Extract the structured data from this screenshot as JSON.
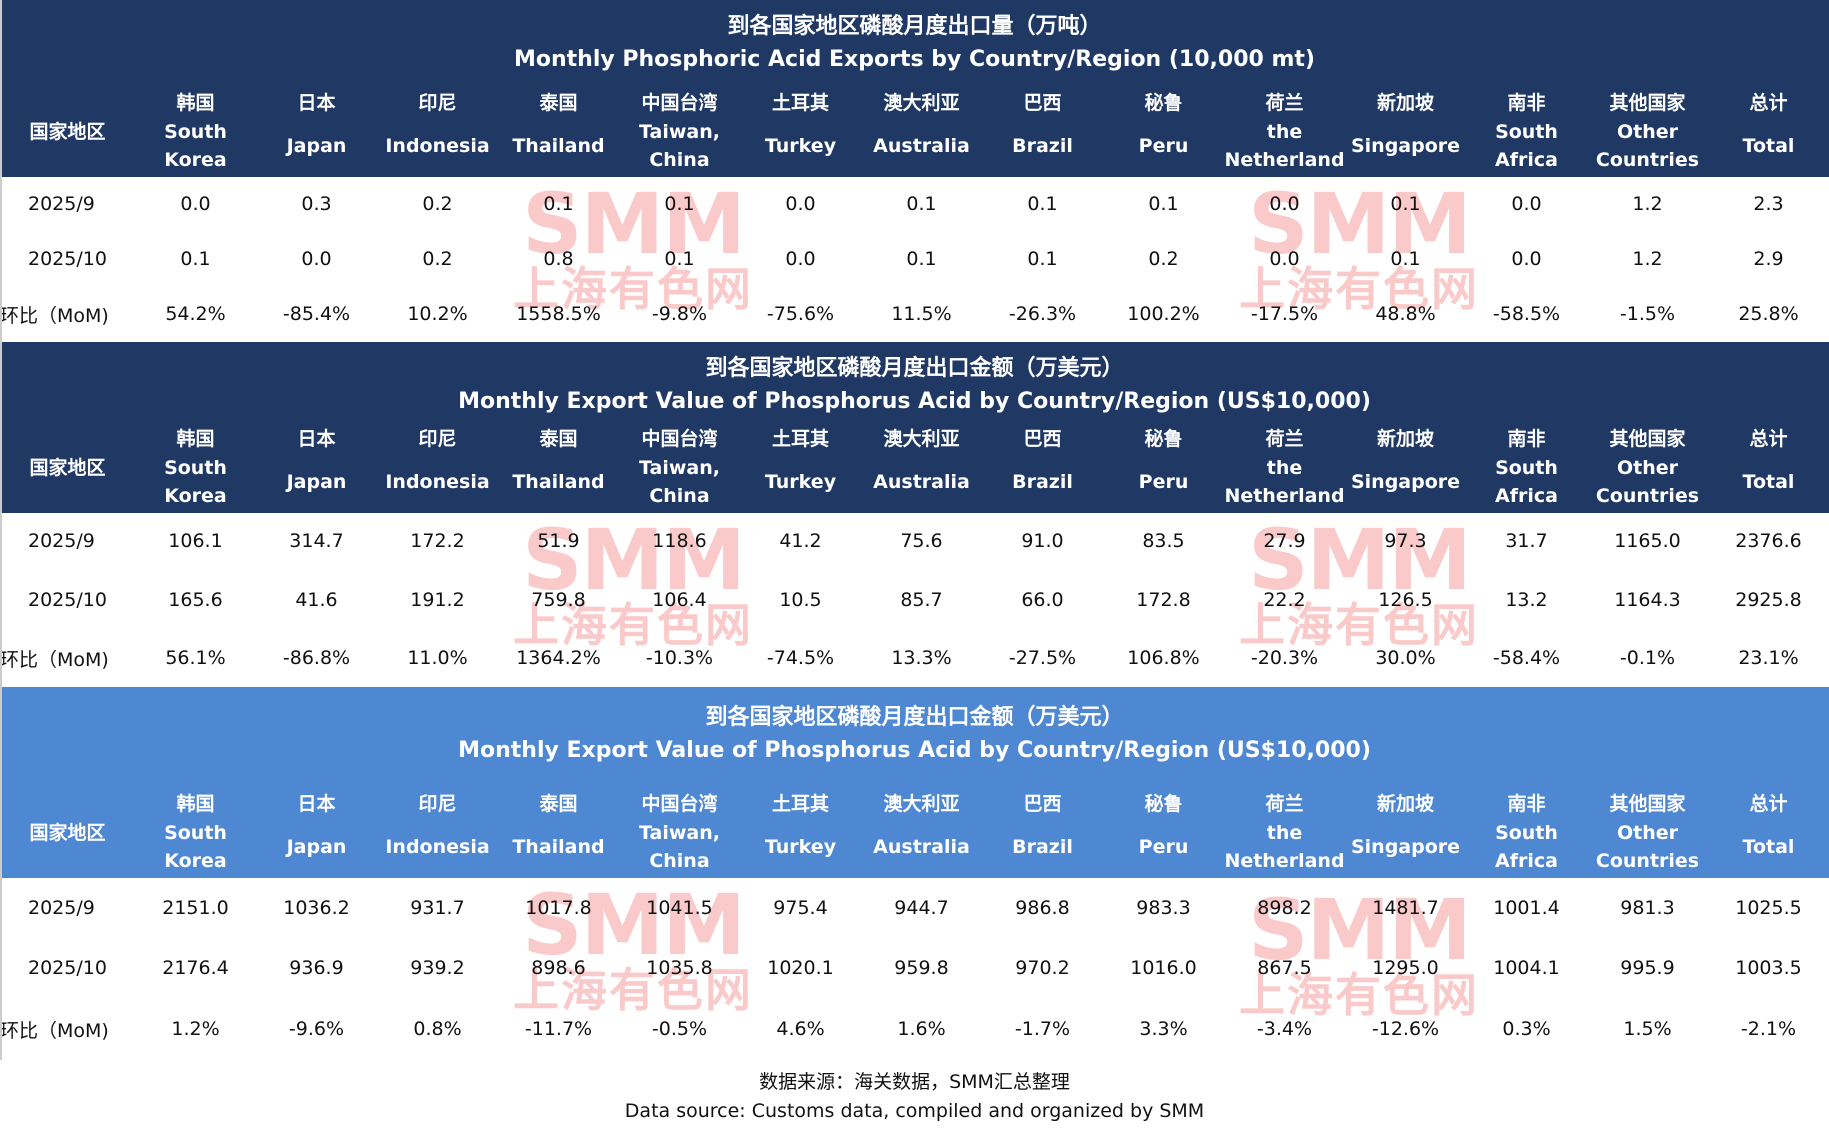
{
  "columns": [
    {
      "cn": "国家地区",
      "en": []
    },
    {
      "cn": "韩国",
      "en": [
        "South",
        "Korea"
      ]
    },
    {
      "cn": "日本",
      "en": [
        "Japan"
      ]
    },
    {
      "cn": "印尼",
      "en": [
        "Indonesia"
      ]
    },
    {
      "cn": "泰国",
      "en": [
        "Thailand"
      ]
    },
    {
      "cn": "中国台湾",
      "en": [
        "Taiwan,",
        "China"
      ]
    },
    {
      "cn": "土耳其",
      "en": [
        "Turkey"
      ]
    },
    {
      "cn": "澳大利亚",
      "en": [
        "Australia"
      ]
    },
    {
      "cn": "巴西",
      "en": [
        "Brazil"
      ]
    },
    {
      "cn": "秘鲁",
      "en": [
        "Peru"
      ]
    },
    {
      "cn": "荷兰",
      "en": [
        "the",
        "Netherland"
      ]
    },
    {
      "cn": "新加坡",
      "en": [
        "Singapore"
      ]
    },
    {
      "cn": "南非",
      "en": [
        "South",
        "Africa"
      ]
    },
    {
      "cn": "其他国家",
      "en": [
        "Other",
        "Countries"
      ]
    },
    {
      "cn": "总计",
      "en": [
        "Total"
      ]
    }
  ],
  "watermark": {
    "logo": "SMM",
    "cn": "上海有色网"
  },
  "tables": [
    {
      "title_cn": "到各国家地区磷酸月度出口量（万吨）",
      "title_en": "Monthly Phosphoric Acid Exports by Country/Region (10,000 mt)",
      "rows": [
        [
          "2025/9",
          "0.0",
          "0.3",
          "0.2",
          "0.1",
          "0.1",
          "0.0",
          "0.1",
          "0.1",
          "0.1",
          "0.0",
          "0.1",
          "0.0",
          "1.2",
          "2.3"
        ],
        [
          "2025/10",
          "0.1",
          "0.0",
          "0.2",
          "0.8",
          "0.1",
          "0.0",
          "0.1",
          "0.1",
          "0.2",
          "0.0",
          "0.1",
          "0.0",
          "1.2",
          "2.9"
        ],
        [
          "环比（MoM)",
          "54.2%",
          "-85.4%",
          "10.2%",
          "1558.5%",
          "-9.8%",
          "-75.6%",
          "11.5%",
          "-26.3%",
          "100.2%",
          "-17.5%",
          "48.8%",
          "-58.5%",
          "-1.5%",
          "25.8%"
        ]
      ]
    },
    {
      "title_cn": "到各国家地区磷酸月度出口金额（万美元）",
      "title_en": "Monthly Export Value of Phosphorus Acid by Country/Region (US$10,000)",
      "rows": [
        [
          "2025/9",
          "106.1",
          "314.7",
          "172.2",
          "51.9",
          "118.6",
          "41.2",
          "75.6",
          "91.0",
          "83.5",
          "27.9",
          "97.3",
          "31.7",
          "1165.0",
          "2376.6"
        ],
        [
          "2025/10",
          "165.6",
          "41.6",
          "191.2",
          "759.8",
          "106.4",
          "10.5",
          "85.7",
          "66.0",
          "172.8",
          "22.2",
          "126.5",
          "13.2",
          "1164.3",
          "2925.8"
        ],
        [
          "环比（MoM)",
          "56.1%",
          "-86.8%",
          "11.0%",
          "1364.2%",
          "-10.3%",
          "-74.5%",
          "13.3%",
          "-27.5%",
          "106.8%",
          "-20.3%",
          "30.0%",
          "-58.4%",
          "-0.1%",
          "23.1%"
        ]
      ]
    },
    {
      "title_cn": "到各国家地区磷酸月度出口金额（万美元）",
      "title_en": "Monthly Export Value of Phosphorus Acid by Country/Region (US$10,000)",
      "rows": [
        [
          "2025/9",
          "2151.0",
          "1036.2",
          "931.7",
          "1017.8",
          "1041.5",
          "975.4",
          "944.7",
          "986.8",
          "983.3",
          "898.2",
          "1481.7",
          "1001.4",
          "981.3",
          "1025.5"
        ],
        [
          "2025/10",
          "2176.4",
          "936.9",
          "939.2",
          "898.6",
          "1035.8",
          "1020.1",
          "959.8",
          "970.2",
          "1016.0",
          "867.5",
          "1295.0",
          "1004.1",
          "995.9",
          "1003.5"
        ],
        [
          "环比（MoM)",
          "1.2%",
          "-9.6%",
          "0.8%",
          "-11.7%",
          "-0.5%",
          "4.6%",
          "1.6%",
          "-1.7%",
          "3.3%",
          "-3.4%",
          "-12.6%",
          "0.3%",
          "1.5%",
          "-2.1%"
        ]
      ]
    }
  ],
  "footer": {
    "cn": "数据来源：海关数据，SMM汇总整理",
    "en": "Data source: Customs data, compiled and organized by SMM"
  }
}
